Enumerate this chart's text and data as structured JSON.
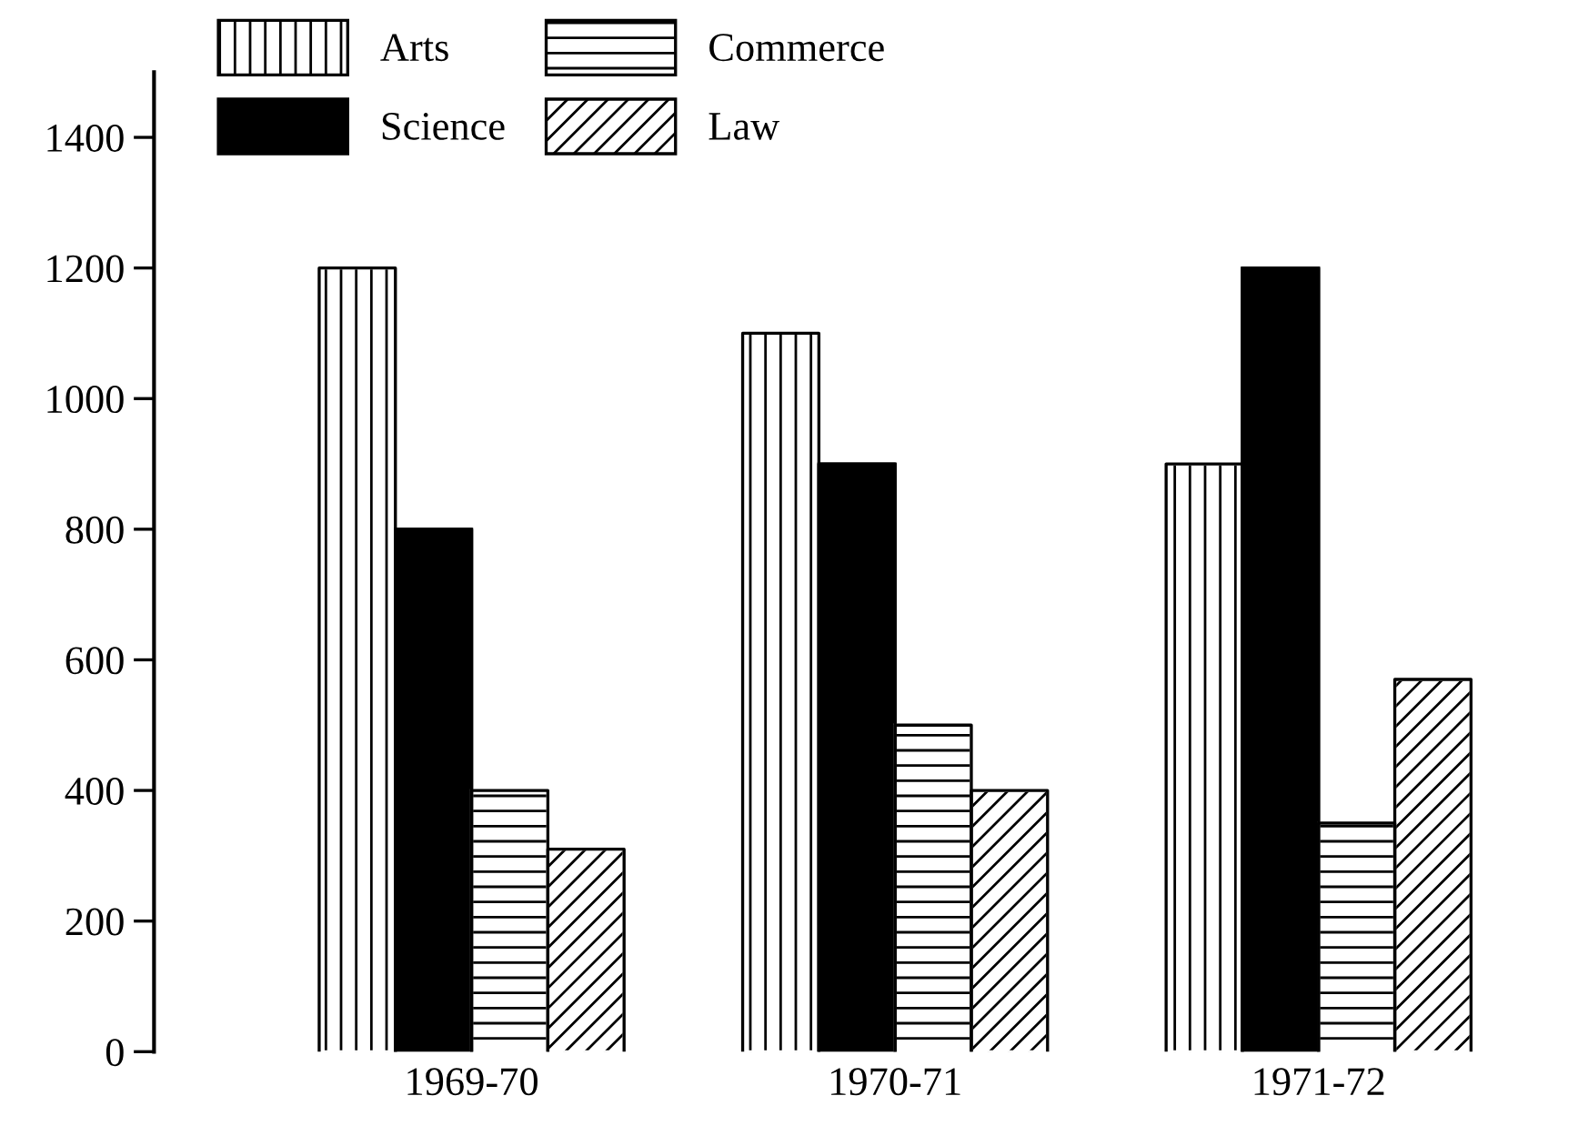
{
  "chart_data": {
    "type": "bar",
    "categories": [
      "1969-70",
      "1970-71",
      "1971-72"
    ],
    "series": [
      {
        "name": "Arts",
        "color": "#ffffff",
        "values": [
          1200,
          1100,
          900
        ]
      },
      {
        "name": "Science",
        "color": "#000000",
        "values": [
          800,
          900,
          1200
        ]
      },
      {
        "name": "Commerce",
        "color": "#ffffff",
        "values": [
          400,
          500,
          350
        ]
      },
      {
        "name": "Law",
        "color": "#ffffff",
        "values": [
          310,
          400,
          570
        ]
      }
    ],
    "ylim": [
      0,
      1500
    ],
    "yticks": [
      0,
      200,
      400,
      600,
      800,
      1000,
      1200,
      1400
    ],
    "grid": false,
    "legend": "top left"
  }
}
